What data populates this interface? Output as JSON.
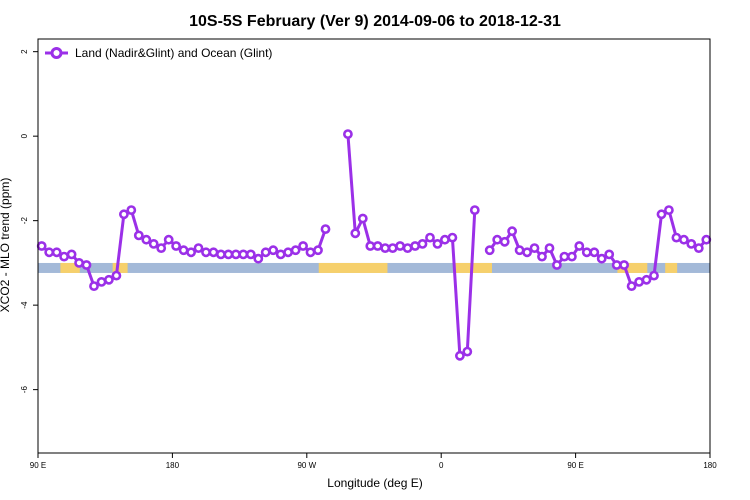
{
  "chart_data": {
    "type": "line",
    "title": "10S-5S February (Ver 9)   2014-09-06 to 2018-12-31",
    "xlabel": "Longitude (deg E)",
    "ylabel": "XCO2 - MLO trend (ppm)",
    "xlim": [
      90,
      540
    ],
    "ylim": [
      -7.5,
      2.3
    ],
    "x_ticks": [
      {
        "value": 90,
        "label": "90 E"
      },
      {
        "value": 180,
        "label": "180"
      },
      {
        "value": 270,
        "label": "90 W"
      },
      {
        "value": 360,
        "label": "0"
      },
      {
        "value": 450,
        "label": "90 E"
      },
      {
        "value": 540,
        "label": "180"
      }
    ],
    "y_ticks": [
      {
        "value": 2,
        "label": "2"
      },
      {
        "value": 0,
        "label": "0"
      },
      {
        "value": -2,
        "label": "-2"
      },
      {
        "value": -4,
        "label": "-4"
      },
      {
        "value": -6,
        "label": "-6"
      }
    ],
    "grid": false,
    "legend_position": "top-left",
    "series": [
      {
        "name": "Land (Nadir&Glint) and Ocean (Glint)",
        "color": "#9b30e8",
        "segments": [
          [
            [
              92.5,
              -2.6
            ],
            [
              97.5,
              -2.75
            ],
            [
              102.5,
              -2.75
            ],
            [
              107.5,
              -2.85
            ],
            [
              112.5,
              -2.8
            ],
            [
              117.5,
              -3.0
            ],
            [
              122.5,
              -3.05
            ],
            [
              127.5,
              -3.55
            ],
            [
              132.5,
              -3.45
            ],
            [
              137.5,
              -3.4
            ],
            [
              142.5,
              -3.3
            ],
            [
              147.5,
              -1.85
            ],
            [
              152.5,
              -1.75
            ],
            [
              157.5,
              -2.35
            ],
            [
              162.5,
              -2.45
            ],
            [
              167.5,
              -2.55
            ],
            [
              172.5,
              -2.65
            ],
            [
              177.5,
              -2.45
            ],
            [
              182.5,
              -2.6
            ],
            [
              187.5,
              -2.7
            ],
            [
              192.5,
              -2.75
            ],
            [
              197.5,
              -2.65
            ],
            [
              202.5,
              -2.75
            ],
            [
              207.5,
              -2.75
            ],
            [
              212.5,
              -2.8
            ],
            [
              217.5,
              -2.8
            ],
            [
              222.5,
              -2.8
            ],
            [
              227.5,
              -2.8
            ],
            [
              232.5,
              -2.8
            ],
            [
              237.5,
              -2.9
            ],
            [
              242.5,
              -2.75
            ],
            [
              247.5,
              -2.7
            ],
            [
              252.5,
              -2.8
            ],
            [
              257.5,
              -2.75
            ],
            [
              262.5,
              -2.7
            ],
            [
              267.5,
              -2.6
            ],
            [
              272.5,
              -2.75
            ],
            [
              277.5,
              -2.7
            ],
            [
              282.5,
              -2.2
            ]
          ],
          [
            [
              297.5,
              0.05
            ],
            [
              302.5,
              -2.3
            ],
            [
              307.5,
              -1.95
            ],
            [
              312.5,
              -2.6
            ],
            [
              317.5,
              -2.6
            ],
            [
              322.5,
              -2.65
            ],
            [
              327.5,
              -2.65
            ],
            [
              332.5,
              -2.6
            ],
            [
              337.5,
              -2.65
            ],
            [
              342.5,
              -2.6
            ],
            [
              347.5,
              -2.55
            ],
            [
              352.5,
              -2.4
            ],
            [
              357.5,
              -2.55
            ],
            [
              362.5,
              -2.45
            ],
            [
              367.5,
              -2.4
            ],
            [
              372.5,
              -5.2
            ],
            [
              377.5,
              -5.1
            ],
            [
              382.5,
              -1.75
            ]
          ],
          [
            [
              392.5,
              -2.7
            ],
            [
              397.5,
              -2.45
            ],
            [
              402.5,
              -2.5
            ],
            [
              407.5,
              -2.25
            ],
            [
              412.5,
              -2.7
            ],
            [
              417.5,
              -2.75
            ],
            [
              422.5,
              -2.65
            ],
            [
              427.5,
              -2.85
            ],
            [
              432.5,
              -2.65
            ],
            [
              437.5,
              -3.05
            ],
            [
              442.5,
              -2.85
            ],
            [
              447.5,
              -2.85
            ],
            [
              452.5,
              -2.6
            ],
            [
              457.5,
              -2.75
            ],
            [
              462.5,
              -2.75
            ],
            [
              467.5,
              -2.9
            ],
            [
              472.5,
              -2.8
            ],
            [
              477.5,
              -3.05
            ],
            [
              482.5,
              -3.05
            ],
            [
              487.5,
              -3.55
            ],
            [
              492.5,
              -3.45
            ],
            [
              497.5,
              -3.4
            ],
            [
              502.5,
              -3.3
            ],
            [
              507.5,
              -1.85
            ],
            [
              512.5,
              -1.75
            ],
            [
              517.5,
              -2.4
            ],
            [
              522.5,
              -2.45
            ],
            [
              527.5,
              -2.55
            ],
            [
              532.5,
              -2.65
            ],
            [
              537.5,
              -2.45
            ]
          ]
        ]
      }
    ],
    "map_band": {
      "y_value": -3.12,
      "ocean_color": "#a3b9d8",
      "land_color": "#f6d06c",
      "land_ranges": [
        [
          105,
          118
        ],
        [
          140,
          150
        ],
        [
          278,
          324
        ],
        [
          368,
          394
        ],
        [
          478,
          498
        ],
        [
          510,
          518
        ]
      ]
    }
  }
}
